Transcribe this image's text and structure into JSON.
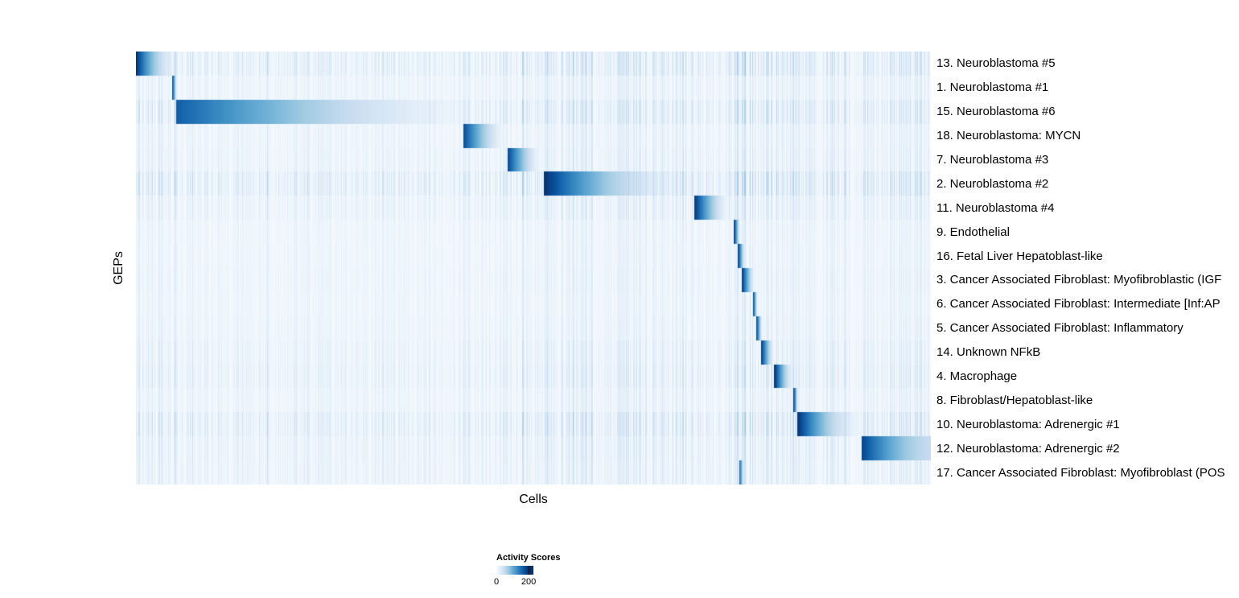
{
  "chart_data": {
    "type": "heatmap",
    "title": "",
    "xlabel": "Cells",
    "ylabel": "GEPs",
    "colorbar": {
      "title": "Activity Scores",
      "min_label": "0",
      "max_label": "200",
      "min": 0,
      "max": 200,
      "colormap": "Blues",
      "color_low": "#f7fbff",
      "color_high": "#08306b"
    },
    "rows": [
      {
        "label": "13. Neuroblastoma #5",
        "block": [
          0.0,
          0.065
        ],
        "peak": 1.0,
        "decay": 2.2,
        "tail": 0.0,
        "noise": 0.85
      },
      {
        "label": "1. Neuroblastoma #1",
        "block": [
          0.0455,
          0.0515
        ],
        "peak": 0.95,
        "decay": 1.0,
        "tail": 0.0,
        "noise": 0.45
      },
      {
        "label": "15. Neuroblastoma #6",
        "block": [
          0.051,
          0.411
        ],
        "peak": 0.82,
        "decay": 1.5,
        "tail": 0.05,
        "noise": 0.8
      },
      {
        "label": "18. Neuroblastoma: MYCN",
        "block": [
          0.412,
          0.468
        ],
        "peak": 0.9,
        "decay": 1.5,
        "tail": 0.0,
        "noise": 0.45
      },
      {
        "label": "7. Neuroblastoma #3",
        "block": [
          0.468,
          0.511
        ],
        "peak": 0.9,
        "decay": 1.4,
        "tail": 0.0,
        "noise": 0.5
      },
      {
        "label": "2. Neuroblastoma #2",
        "block": [
          0.513,
          0.702
        ],
        "peak": 1.0,
        "decay": 1.9,
        "tail": 0.03,
        "noise": 0.95
      },
      {
        "label": "11. Neuroblastoma #4",
        "block": [
          0.702,
          0.749
        ],
        "peak": 1.0,
        "decay": 1.5,
        "tail": 0.0,
        "noise": 0.55
      },
      {
        "label": "9. Endothelial",
        "block": [
          0.752,
          0.76
        ],
        "peak": 1.0,
        "decay": 1.0,
        "tail": 0.0,
        "noise": 0.35
      },
      {
        "label": "16. Fetal Liver Hepatoblast-like",
        "block": [
          0.757,
          0.766
        ],
        "peak": 1.0,
        "decay": 1.0,
        "tail": 0.0,
        "noise": 0.35
      },
      {
        "label": "3. Cancer Associated Fibroblast: Myofibroblastic (IGF",
        "block": [
          0.762,
          0.779
        ],
        "peak": 1.0,
        "decay": 1.2,
        "tail": 0.0,
        "noise": 0.4
      },
      {
        "label": "6. Cancer Associated Fibroblast: Intermediate [Inf:AP",
        "block": [
          0.776,
          0.782
        ],
        "peak": 1.0,
        "decay": 1.0,
        "tail": 0.0,
        "noise": 0.35
      },
      {
        "label": "5. Cancer Associated Fibroblast: Inflammatory",
        "block": [
          0.78,
          0.788
        ],
        "peak": 1.0,
        "decay": 1.0,
        "tail": 0.0,
        "noise": 0.4
      },
      {
        "label": "14. Unknown NFkB",
        "block": [
          0.786,
          0.803
        ],
        "peak": 1.0,
        "decay": 1.2,
        "tail": 0.0,
        "noise": 0.55
      },
      {
        "label": "4. Macrophage",
        "block": [
          0.803,
          0.827
        ],
        "peak": 1.0,
        "decay": 1.3,
        "tail": 0.0,
        "noise": 0.65
      },
      {
        "label": "8. Fibroblast/Hepatoblast-like",
        "block": [
          0.827,
          0.833
        ],
        "peak": 1.0,
        "decay": 1.0,
        "tail": 0.0,
        "noise": 0.45
      },
      {
        "label": "10. Neuroblastoma: Adrenergic #1",
        "block": [
          0.832,
          0.913
        ],
        "peak": 1.0,
        "decay": 1.8,
        "tail": 0.05,
        "noise": 0.85
      },
      {
        "label": "12. Neuroblastoma: Adrenergic #2",
        "block": [
          0.913,
          1.0
        ],
        "peak": 0.92,
        "decay": 1.6,
        "tail": 0.25,
        "noise": 0.6
      },
      {
        "label": "17. Cancer Associated Fibroblast: Myofibroblast (POS",
        "block": [
          0.759,
          0.765
        ],
        "peak": 0.88,
        "decay": 1.0,
        "tail": 0.0,
        "noise": 0.55
      }
    ],
    "bands": [
      {
        "range": [
          0.0,
          0.05
        ],
        "boost": 0.35
      },
      {
        "range": [
          0.05,
          0.411
        ],
        "boost": 0.12
      },
      {
        "range": [
          0.411,
          0.513
        ],
        "boost": 0.18
      },
      {
        "range": [
          0.513,
          0.702
        ],
        "boost": 0.4
      },
      {
        "range": [
          0.702,
          0.75
        ],
        "boost": 0.3
      },
      {
        "range": [
          0.75,
          0.835
        ],
        "boost": 0.55
      },
      {
        "range": [
          0.835,
          0.913
        ],
        "boost": 0.3
      },
      {
        "range": [
          0.913,
          1.0
        ],
        "boost": 0.32
      }
    ]
  }
}
